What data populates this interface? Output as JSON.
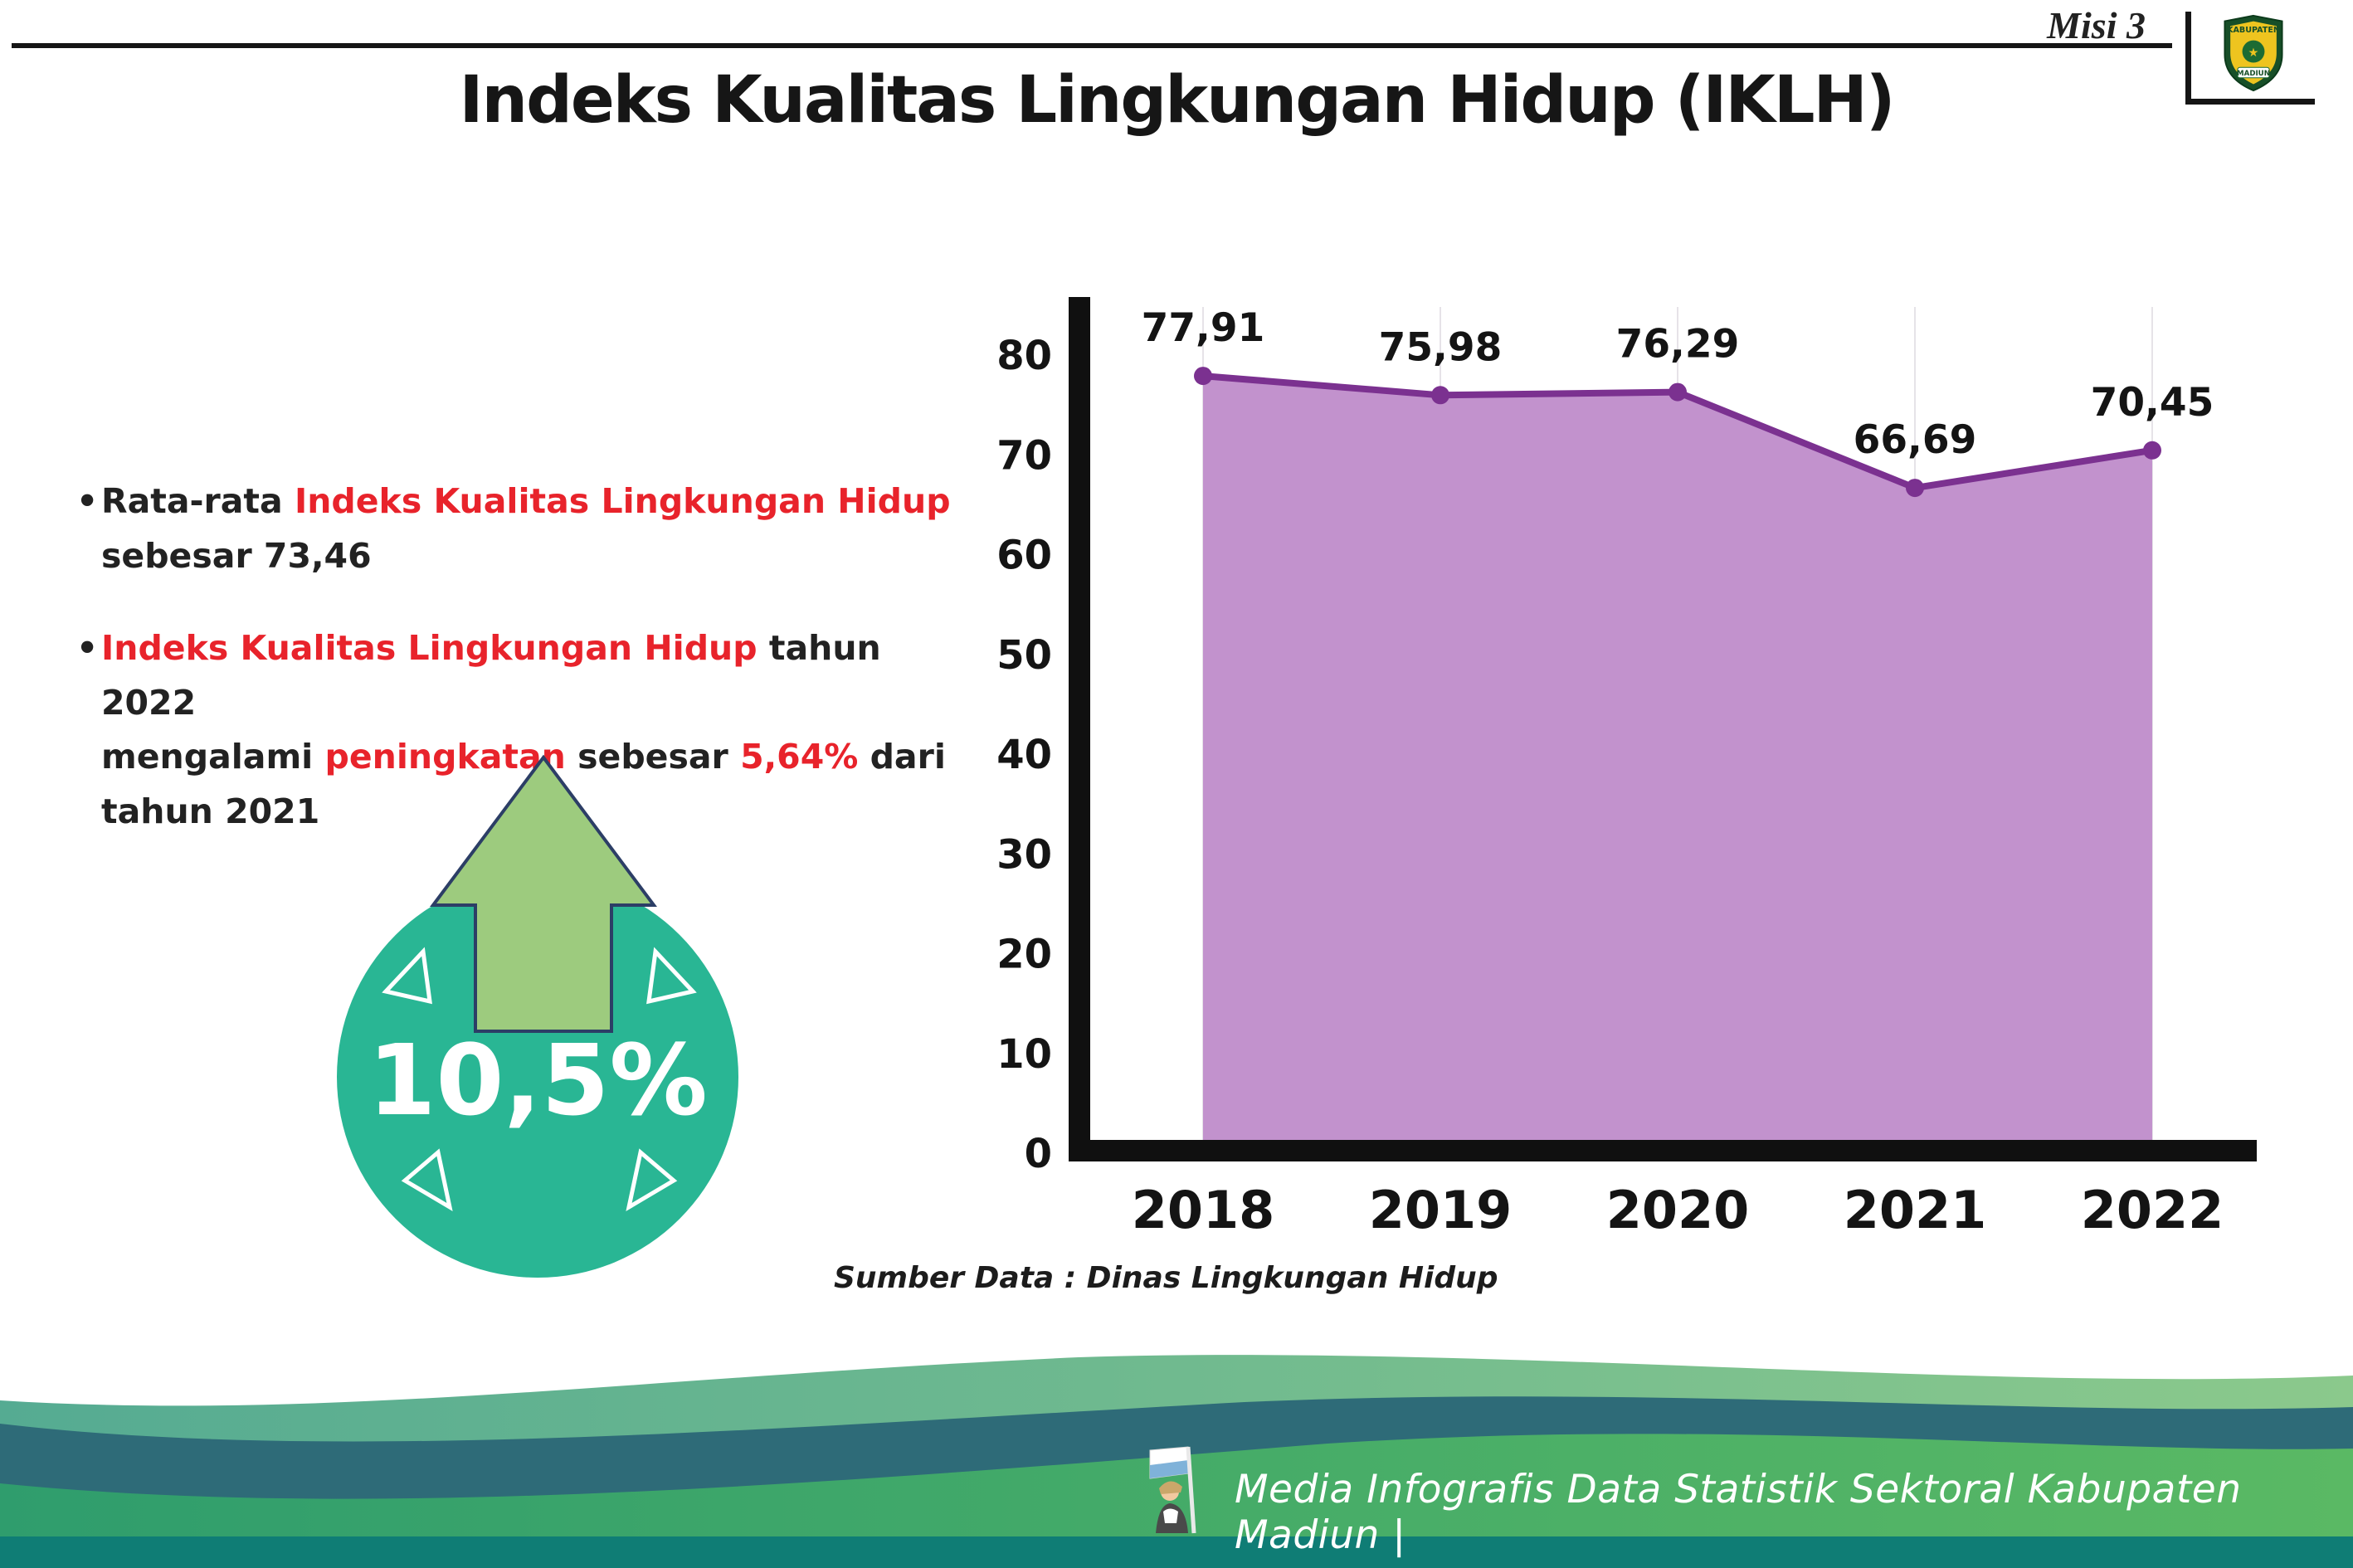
{
  "colors": {
    "accent_red": "#E8232B",
    "badge_teal": "#29B694",
    "arrow_green": "#9DCB7E",
    "chart_area_purple": "#C292CD",
    "chart_line_purple": "#7B3190",
    "footer_band_dark": "#2E6B78",
    "footer_band_main_green": "#3FA468",
    "footer_strip_teal": "#0F7D75"
  },
  "header": {
    "misi_label": "Misi 3",
    "logo": {
      "top_text": "KABUPATEN",
      "bottom_text": "MADIUN"
    }
  },
  "title": "Indeks Kualitas Lingkungan Hidup (IKLH)",
  "bullets": [
    {
      "marker": "•",
      "segments": [
        {
          "text": "Rata-rata ",
          "red": false
        },
        {
          "text": "Indeks Kualitas Lingkungan Hidup",
          "red": true
        },
        {
          "text": "\nsebesar 73,46",
          "red": false
        }
      ]
    },
    {
      "marker": "•",
      "segments": [
        {
          "text": "Indeks Kualitas Lingkungan Hidup",
          "red": true
        },
        {
          "text": " tahun 2022\nmengalami ",
          "red": false
        },
        {
          "text": "peningkatan",
          "red": true
        },
        {
          "text": " sebesar ",
          "red": false
        },
        {
          "text": "5,64%",
          "red": true
        },
        {
          "text": " dari\ntahun 2021",
          "red": false
        }
      ]
    }
  ],
  "increase_badge": {
    "value": "10,5%"
  },
  "chart_data": {
    "type": "area",
    "categories": [
      "2018",
      "2019",
      "2020",
      "2021",
      "2022"
    ],
    "values": [
      77.91,
      75.98,
      76.29,
      66.69,
      70.45
    ],
    "point_labels": [
      "77,91",
      "75,98",
      "76,29",
      "66,69",
      "70,45"
    ],
    "ylim": [
      0,
      80
    ],
    "yticks": [
      0,
      10,
      20,
      30,
      40,
      50,
      60,
      70,
      80
    ],
    "grid": "vertical-light",
    "legend": "none",
    "area_color": "#C292CD",
    "line_color": "#7B3190",
    "source": "Sumber Data : Dinas Lingkungan Hidup"
  },
  "footer": {
    "text": "Media Infografis Data Statistik Sektoral Kabupaten Madiun |"
  }
}
